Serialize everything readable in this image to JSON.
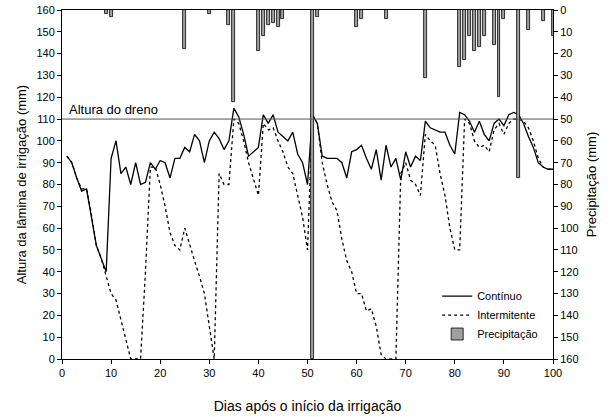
{
  "chart_data": {
    "type": "line",
    "xlabel": "Dias após o início da irrigação",
    "ylabel": "Altura da lâmina de irrigação (mm)",
    "y2label": "Precipitação (mm)",
    "xlim": [
      0,
      100
    ],
    "xticks": [
      0,
      10,
      20,
      30,
      40,
      50,
      60,
      70,
      80,
      90,
      100
    ],
    "ylim": [
      0,
      160
    ],
    "yticks": [
      0,
      10,
      20,
      30,
      40,
      50,
      60,
      70,
      80,
      90,
      100,
      110,
      120,
      130,
      140,
      150,
      160
    ],
    "y2lim": [
      160,
      0
    ],
    "y2ticks": [
      0,
      10,
      20,
      30,
      40,
      50,
      60,
      70,
      80,
      90,
      100,
      110,
      120,
      130,
      140,
      150,
      160
    ],
    "grid": false,
    "legend": "lower right",
    "reference_lines": [
      {
        "y": 110,
        "label": "Altura do dreno"
      }
    ],
    "series": [
      {
        "name": "Contínuo",
        "type": "line",
        "color": "#000000",
        "line_style": "solid",
        "x": [
          1,
          2,
          3,
          4,
          5,
          6,
          7,
          8,
          9,
          10,
          11,
          12,
          13,
          14,
          15,
          16,
          17,
          18,
          19,
          20,
          21,
          22,
          23,
          24,
          25,
          26,
          27,
          28,
          29,
          30,
          31,
          32,
          33,
          34,
          35,
          36,
          37,
          38,
          39,
          40,
          41,
          42,
          43,
          44,
          45,
          46,
          47,
          48,
          49,
          50,
          51,
          52,
          53,
          54,
          55,
          56,
          57,
          58,
          59,
          60,
          61,
          62,
          63,
          64,
          65,
          66,
          67,
          68,
          69,
          70,
          71,
          72,
          73,
          74,
          75,
          76,
          77,
          78,
          79,
          80,
          81,
          82,
          83,
          84,
          85,
          86,
          87,
          88,
          89,
          90,
          91,
          92,
          93,
          94,
          95,
          96,
          97,
          98,
          99,
          100
        ],
        "values": [
          93,
          90,
          83,
          77,
          78,
          65,
          52,
          46,
          40,
          92,
          100,
          85,
          88,
          80,
          90,
          80,
          81,
          90,
          87,
          91,
          90,
          83,
          92,
          92,
          97,
          95,
          103,
          100,
          90,
          100,
          104,
          101,
          96,
          100,
          115,
          111,
          103,
          93,
          95,
          97,
          112,
          108,
          112,
          104,
          102,
          100,
          104,
          94,
          90,
          80,
          112,
          108,
          93,
          92,
          92,
          92,
          90,
          83,
          95,
          96,
          98,
          92,
          87,
          96,
          82,
          98,
          88,
          92,
          82,
          95,
          88,
          93,
          91,
          109,
          106,
          105,
          104,
          104,
          98,
          94,
          113,
          112,
          109,
          104,
          109,
          103,
          100,
          108,
          110,
          107,
          112,
          113,
          112,
          108,
          102,
          97,
          90,
          88,
          87,
          87
        ]
      },
      {
        "name": "Intermitente",
        "type": "line",
        "color": "#000000",
        "line_style": "dotted",
        "x": [
          1,
          2,
          3,
          4,
          5,
          6,
          7,
          8,
          9,
          10,
          11,
          12,
          13,
          14,
          15,
          16,
          17,
          18,
          19,
          20,
          21,
          22,
          23,
          24,
          25,
          26,
          27,
          28,
          29,
          30,
          31,
          32,
          33,
          34,
          35,
          36,
          37,
          38,
          39,
          40,
          41,
          42,
          43,
          44,
          45,
          46,
          47,
          48,
          49,
          50,
          51,
          52,
          53,
          54,
          55,
          56,
          57,
          58,
          59,
          60,
          61,
          62,
          63,
          64,
          65,
          66,
          67,
          68,
          69,
          70,
          71,
          72,
          73,
          74,
          75,
          76,
          77,
          78,
          79,
          80,
          81,
          82,
          83,
          84,
          85,
          86,
          87,
          88,
          89,
          90,
          91,
          92,
          93,
          94,
          95,
          96,
          97,
          98,
          99,
          100
        ],
        "values": [
          93,
          90,
          83,
          78,
          78,
          66,
          52,
          46,
          38,
          30,
          27,
          18,
          10,
          0,
          0,
          0,
          40,
          88,
          88,
          80,
          70,
          58,
          52,
          50,
          60,
          52,
          45,
          38,
          30,
          15,
          0,
          85,
          80,
          80,
          110,
          108,
          100,
          90,
          82,
          75,
          108,
          105,
          106,
          100,
          95,
          88,
          85,
          75,
          65,
          50,
          112,
          108,
          90,
          80,
          72,
          68,
          55,
          45,
          40,
          30,
          30,
          22,
          23,
          15,
          2,
          0,
          0,
          0,
          85,
          90,
          82,
          80,
          75,
          103,
          100,
          98,
          85,
          75,
          60,
          50,
          50,
          110,
          108,
          100,
          97,
          98,
          95,
          105,
          108,
          103,
          108,
          110,
          110,
          109,
          106,
          100,
          92,
          88,
          87,
          87
        ]
      },
      {
        "name": "Precipitação",
        "type": "bar",
        "axis": "y2",
        "color": "#a0a0a0",
        "x": [
          9,
          10,
          25,
          30,
          34,
          35,
          40,
          41,
          42,
          43,
          44,
          45,
          51,
          52,
          60,
          61,
          66,
          74,
          81,
          82,
          83,
          84,
          85,
          86,
          88,
          89,
          90,
          93,
          95,
          98,
          100
        ],
        "values": [
          2,
          3,
          18,
          2,
          7,
          42,
          19,
          12,
          7,
          6,
          8,
          4,
          160,
          3,
          8,
          4,
          4,
          31,
          26,
          23,
          12,
          19,
          17,
          12,
          16,
          40,
          4,
          77,
          9,
          5,
          12
        ]
      }
    ]
  }
}
